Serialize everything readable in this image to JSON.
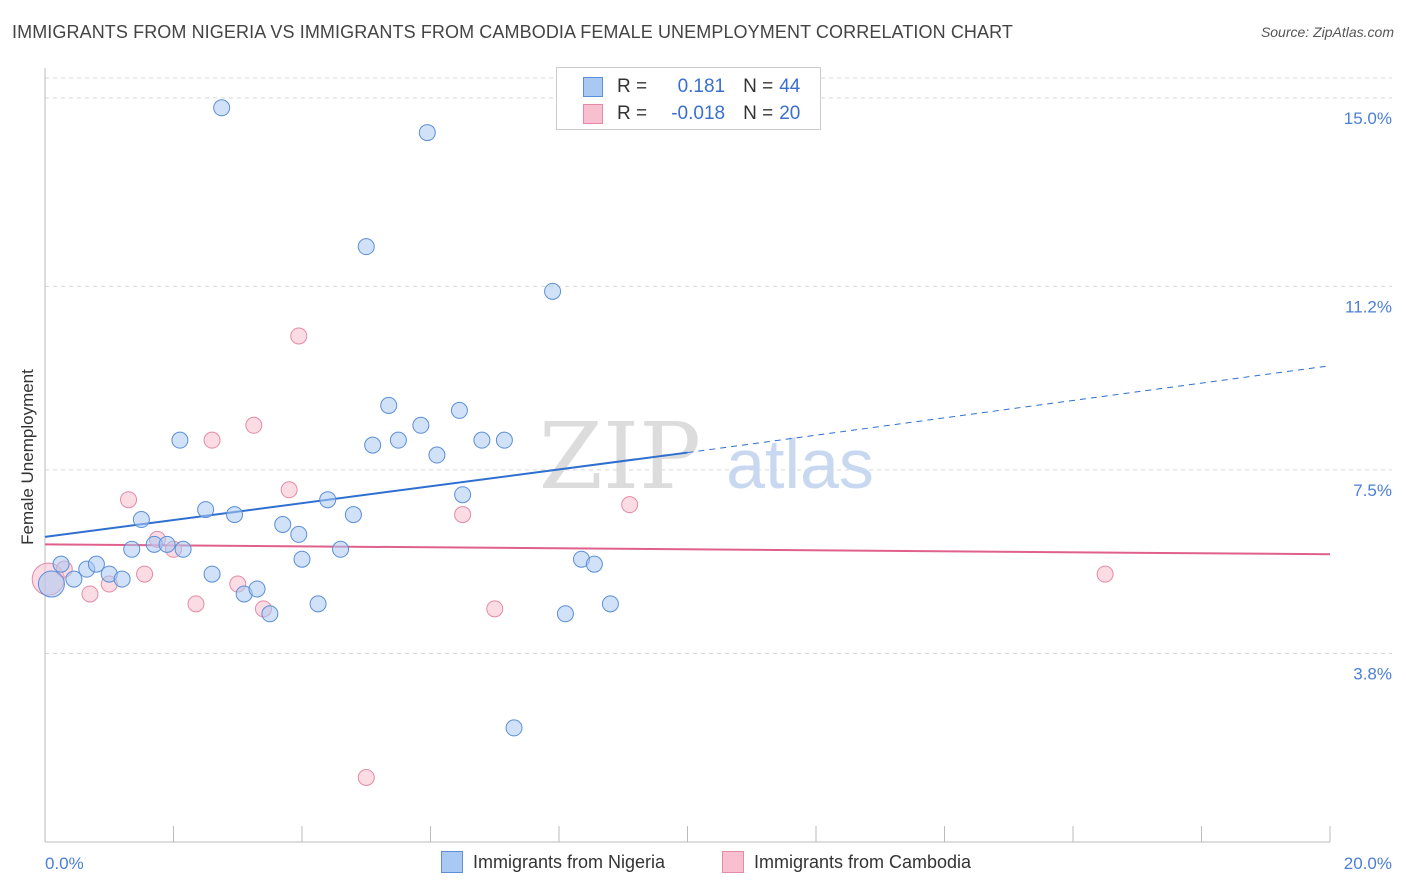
{
  "title": "IMMIGRANTS FROM NIGERIA VS IMMIGRANTS FROM CAMBODIA FEMALE UNEMPLOYMENT CORRELATION CHART",
  "source": "Source: ZipAtlas.com",
  "watermark": {
    "zip": "ZIP",
    "atlas": "atlas"
  },
  "legend_stats": [
    {
      "r_label": "R =",
      "r_value": "0.181",
      "n_label": "N =",
      "n_value": "44"
    },
    {
      "r_label": "R =",
      "r_value": "-0.018",
      "n_label": "N =",
      "n_value": "20"
    }
  ],
  "colors": {
    "nigeria_fill": "#a9c8f2",
    "nigeria_stroke": "#5b8fd8",
    "nigeria_line": "#2f6fd0",
    "cambodia_fill": "#f7bfd0",
    "cambodia_stroke": "#e58aa6",
    "cambodia_line": "#e0608c",
    "grid": "#d8d8d8",
    "axis_text": "#4a7fd4"
  },
  "chart_data": {
    "type": "scatter",
    "title": "IMMIGRANTS FROM NIGERIA VS IMMIGRANTS FROM CAMBODIA FEMALE UNEMPLOYMENT CORRELATION CHART",
    "xlabel": "",
    "ylabel": "Female Unemployment",
    "xlim": [
      0,
      20
    ],
    "ylim": [
      0,
      15.4
    ],
    "x_tick_labels": [
      "0.0%",
      "20.0%"
    ],
    "y_ticks": [
      3.8,
      7.5,
      11.2,
      15.0
    ],
    "y_tick_labels": [
      "3.8%",
      "7.5%",
      "11.2%",
      "15.0%"
    ],
    "grid": true,
    "legend_position": "bottom",
    "series": [
      {
        "name": "Immigrants from Nigeria",
        "r": 0.181,
        "n": 44,
        "points": [
          {
            "x": 0.1,
            "y": 5.2
          },
          {
            "x": 0.25,
            "y": 5.6
          },
          {
            "x": 0.45,
            "y": 5.3
          },
          {
            "x": 0.65,
            "y": 5.5
          },
          {
            "x": 0.8,
            "y": 5.6
          },
          {
            "x": 1.0,
            "y": 5.4
          },
          {
            "x": 1.2,
            "y": 5.3
          },
          {
            "x": 1.35,
            "y": 5.9
          },
          {
            "x": 1.5,
            "y": 6.5
          },
          {
            "x": 1.7,
            "y": 6.0
          },
          {
            "x": 1.9,
            "y": 6.0
          },
          {
            "x": 2.15,
            "y": 5.9
          },
          {
            "x": 2.1,
            "y": 8.1
          },
          {
            "x": 2.5,
            "y": 6.7
          },
          {
            "x": 2.6,
            "y": 5.4
          },
          {
            "x": 2.75,
            "y": 14.8
          },
          {
            "x": 2.95,
            "y": 6.6
          },
          {
            "x": 3.1,
            "y": 5.0
          },
          {
            "x": 3.3,
            "y": 5.1
          },
          {
            "x": 3.5,
            "y": 4.6
          },
          {
            "x": 3.7,
            "y": 6.4
          },
          {
            "x": 3.95,
            "y": 6.2
          },
          {
            "x": 4.0,
            "y": 5.7
          },
          {
            "x": 4.25,
            "y": 4.8
          },
          {
            "x": 4.4,
            "y": 6.9
          },
          {
            "x": 4.6,
            "y": 5.9
          },
          {
            "x": 4.8,
            "y": 6.6
          },
          {
            "x": 5.0,
            "y": 12.0
          },
          {
            "x": 5.1,
            "y": 8.0
          },
          {
            "x": 5.35,
            "y": 8.8
          },
          {
            "x": 5.5,
            "y": 8.1
          },
          {
            "x": 5.85,
            "y": 8.4
          },
          {
            "x": 5.95,
            "y": 14.3
          },
          {
            "x": 6.1,
            "y": 7.8
          },
          {
            "x": 6.45,
            "y": 8.7
          },
          {
            "x": 6.5,
            "y": 7.0
          },
          {
            "x": 6.8,
            "y": 8.1
          },
          {
            "x": 7.15,
            "y": 8.1
          },
          {
            "x": 7.3,
            "y": 2.3
          },
          {
            "x": 7.9,
            "y": 11.1
          },
          {
            "x": 8.1,
            "y": 4.6
          },
          {
            "x": 8.35,
            "y": 5.7
          },
          {
            "x": 8.55,
            "y": 5.6
          },
          {
            "x": 8.8,
            "y": 4.8
          }
        ],
        "trend": {
          "x0": 0,
          "y0": 6.15,
          "x1": 10.0,
          "y1": 7.85,
          "dashed_to_x": 20.0,
          "dashed_to_y": 9.6
        }
      },
      {
        "name": "Immigrants from Cambodia",
        "r": -0.018,
        "n": 20,
        "points": [
          {
            "x": 0.05,
            "y": 5.3
          },
          {
            "x": 0.3,
            "y": 5.5
          },
          {
            "x": 0.7,
            "y": 5.0
          },
          {
            "x": 1.0,
            "y": 5.2
          },
          {
            "x": 1.3,
            "y": 6.9
          },
          {
            "x": 1.55,
            "y": 5.4
          },
          {
            "x": 1.75,
            "y": 6.1
          },
          {
            "x": 2.0,
            "y": 5.9
          },
          {
            "x": 2.35,
            "y": 4.8
          },
          {
            "x": 2.6,
            "y": 8.1
          },
          {
            "x": 3.0,
            "y": 5.2
          },
          {
            "x": 3.25,
            "y": 8.4
          },
          {
            "x": 3.4,
            "y": 4.7
          },
          {
            "x": 3.8,
            "y": 7.1
          },
          {
            "x": 3.95,
            "y": 10.2
          },
          {
            "x": 5.0,
            "y": 1.3
          },
          {
            "x": 6.5,
            "y": 6.6
          },
          {
            "x": 7.0,
            "y": 4.7
          },
          {
            "x": 9.1,
            "y": 6.8
          },
          {
            "x": 16.5,
            "y": 5.4
          }
        ],
        "trend": {
          "x0": 0,
          "y0": 6.0,
          "x1": 20.0,
          "y1": 5.8
        }
      }
    ]
  }
}
